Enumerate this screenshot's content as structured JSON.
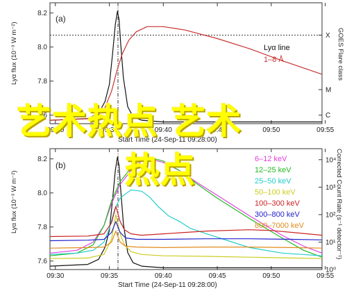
{
  "chart_data": [
    {
      "type": "line",
      "panel_label": "(a)",
      "ylabel": "Lyα flux (10⁻³ W m⁻²)",
      "ylabel_right": "GOES Flare class",
      "xlabel": "Start Time (24-Sep-11 09:28:00)",
      "x_ticks": [
        "09:30",
        "09:35",
        "09:40",
        "09:45",
        "09:50",
        "09:55",
        "10:00",
        "10:05"
      ],
      "xlim_minutes": [
        9.5,
        34.7
      ],
      "y_ticks": [
        "7.6",
        "7.8",
        "8.0",
        "8.2"
      ],
      "ylim": [
        7.55,
        8.26
      ],
      "right_ticks": [
        "X",
        "M",
        "C"
      ],
      "right_tick_values": [
        8.07,
        7.75,
        7.6
      ],
      "threshold_value": 8.07,
      "event_marker_minute": 15.8,
      "legend": [
        {
          "label": "Lyα line",
          "color": "#111111"
        },
        {
          "label": "1–8 Å",
          "color": "#c83232"
        }
      ],
      "series": [
        {
          "name": "Lyα line",
          "color": "#111111",
          "x": [
            9.5,
            13.0,
            14.0,
            14.6,
            15.0,
            15.3,
            15.55,
            15.75,
            15.9,
            16.05,
            16.3,
            16.7,
            17.2,
            18.0,
            20.0,
            34.7
          ],
          "y": [
            7.57,
            7.58,
            7.61,
            7.68,
            7.78,
            7.96,
            8.13,
            8.21,
            8.16,
            8.02,
            7.82,
            7.65,
            7.59,
            7.57,
            7.56,
            7.56
          ]
        },
        {
          "name": "1–8 Å",
          "color": "#c83232",
          "x": [
            9.5,
            13.5,
            14.5,
            15.2,
            15.7,
            16.2,
            16.8,
            17.5,
            18.5,
            20.0,
            22.0,
            25.0,
            28.0,
            31.0,
            34.7
          ],
          "y": [
            7.57,
            7.58,
            7.63,
            7.74,
            7.86,
            7.96,
            8.04,
            8.09,
            8.12,
            8.12,
            8.1,
            8.05,
            7.99,
            7.92,
            7.84
          ]
        }
      ]
    },
    {
      "type": "line",
      "panel_label": "(b)",
      "ylabel": "Lyα flux (10⁻³ W m⁻²)",
      "ylabel_right": "Corrected Count Rate (s⁻¹ detector⁻¹)",
      "xlabel": "Start Time (24-Sep-11 09:28:00)",
      "x_ticks": [
        "09:30",
        "09:35",
        "09:40",
        "09:45",
        "09:50",
        "09:55",
        "10:00",
        "10:05"
      ],
      "xlim_minutes": [
        9.5,
        34.7
      ],
      "y_ticks": [
        "7.6",
        "7.8",
        "8.0",
        "8.2"
      ],
      "ylim": [
        7.55,
        8.26
      ],
      "right_ticks": [
        "10⁴",
        "10³",
        "10²",
        "10¹",
        "10⁰"
      ],
      "right_log_range": [
        0,
        4.4
      ],
      "event_marker_minute": 15.8,
      "legend": [
        {
          "label": "6–12 keV",
          "color": "#e040e0"
        },
        {
          "label": "12–25 keV",
          "color": "#22bb22"
        },
        {
          "label": "25–50 keV",
          "color": "#22cccc"
        },
        {
          "label": "50–100 keV",
          "color": "#cccc22"
        },
        {
          "label": "100–300 keV",
          "color": "#cc2222"
        },
        {
          "label": "300–800 keV",
          "color": "#2222cc"
        },
        {
          "label": "800–7000 keV",
          "color": "#e08a1a"
        }
      ],
      "series": [
        {
          "name": "Lyα line",
          "color": "#111111",
          "axis": "left",
          "x": [
            9.5,
            13.0,
            14.0,
            14.6,
            15.0,
            15.3,
            15.55,
            15.75,
            15.9,
            16.05,
            16.3,
            16.7,
            17.2,
            18.0,
            20.0,
            34.7
          ],
          "y": [
            7.57,
            7.58,
            7.61,
            7.68,
            7.78,
            7.96,
            8.13,
            8.21,
            8.16,
            8.02,
            7.82,
            7.65,
            7.59,
            7.57,
            7.56,
            7.56
          ]
        },
        {
          "name": "6–12 keV",
          "color": "#e040e0",
          "axis": "right",
          "x": [
            9.5,
            12.0,
            13.5,
            14.5,
            15.2,
            16.0,
            17.0,
            18.0,
            19.0,
            20.0,
            21.5,
            23.0,
            25.0,
            28.0,
            31.0,
            33.0,
            34.7
          ],
          "y": [
            0.6,
            0.7,
            1.0,
            1.6,
            2.4,
            3.1,
            3.6,
            3.95,
            4.0,
            3.9,
            3.6,
            3.2,
            2.7,
            1.95,
            1.25,
            0.85,
            0.6
          ]
        },
        {
          "name": "12–25 keV",
          "color": "#22bb22",
          "axis": "right",
          "x": [
            9.5,
            12.0,
            13.5,
            14.5,
            15.2,
            16.0,
            17.0,
            18.0,
            19.0,
            20.0,
            21.5,
            23.0,
            25.0,
            28.0,
            31.0,
            33.0,
            34.7
          ],
          "y": [
            0.5,
            0.6,
            0.9,
            1.6,
            2.5,
            3.2,
            3.7,
            4.0,
            4.05,
            3.95,
            3.6,
            3.15,
            2.6,
            1.85,
            1.15,
            0.7,
            0.45
          ]
        },
        {
          "name": "25–50 keV",
          "color": "#22cccc",
          "axis": "right",
          "x": [
            9.5,
            12.0,
            13.5,
            14.5,
            15.0,
            15.5,
            16.0,
            17.0,
            18.0,
            18.7,
            19.5,
            20.5,
            21.5,
            22.5,
            24.0,
            26.0,
            28.0,
            31.0,
            34.7
          ],
          "y": [
            0.55,
            0.6,
            0.7,
            1.0,
            1.5,
            2.2,
            2.6,
            2.9,
            2.85,
            2.65,
            2.3,
            1.95,
            1.75,
            1.5,
            1.3,
            1.05,
            0.8,
            0.6,
            0.5
          ]
        },
        {
          "name": "50–100 keV",
          "color": "#cccc22",
          "axis": "right",
          "x": [
            9.5,
            13.0,
            14.5,
            15.2,
            15.6,
            16.0,
            16.4,
            17.0,
            18.0,
            20.0,
            24.0,
            28.0,
            32.0,
            34.7
          ],
          "y": [
            0.4,
            0.42,
            0.55,
            1.1,
            2.0,
            1.3,
            0.9,
            0.65,
            0.55,
            0.5,
            0.48,
            0.45,
            0.42,
            0.4
          ]
        },
        {
          "name": "100–300 keV",
          "color": "#cc2222",
          "axis": "right",
          "x": [
            9.5,
            13.0,
            14.5,
            15.2,
            15.6,
            16.0,
            16.4,
            17.0,
            18.0,
            20.0,
            24.0,
            28.0,
            30.0,
            32.0,
            34.7
          ],
          "y": [
            1.2,
            1.22,
            1.3,
            1.7,
            2.3,
            1.75,
            1.45,
            1.3,
            1.25,
            1.3,
            1.4,
            1.45,
            1.42,
            1.35,
            1.25
          ]
        },
        {
          "name": "300–800 keV",
          "color": "#2222cc",
          "axis": "right",
          "x": [
            9.5,
            13.0,
            14.5,
            15.2,
            15.6,
            16.0,
            16.5,
            17.5,
            20.0,
            24.0,
            28.0,
            32.0,
            34.7
          ],
          "y": [
            1.05,
            1.07,
            1.1,
            1.35,
            1.75,
            1.35,
            1.15,
            1.1,
            1.1,
            1.12,
            1.12,
            1.1,
            1.08
          ]
        },
        {
          "name": "800–7000 keV",
          "color": "#e08a1a",
          "axis": "right",
          "x": [
            9.5,
            13.0,
            14.5,
            15.2,
            15.6,
            16.0,
            16.5,
            17.5,
            20.0,
            24.0,
            28.0,
            32.0,
            34.7
          ],
          "y": [
            0.78,
            0.8,
            0.82,
            1.0,
            1.4,
            1.0,
            0.85,
            0.82,
            0.8,
            0.82,
            0.82,
            0.8,
            0.78
          ]
        }
      ]
    }
  ],
  "watermark": {
    "line1": "艺术热点 艺术",
    "line2": "热点",
    "color": "#ffff00"
  }
}
